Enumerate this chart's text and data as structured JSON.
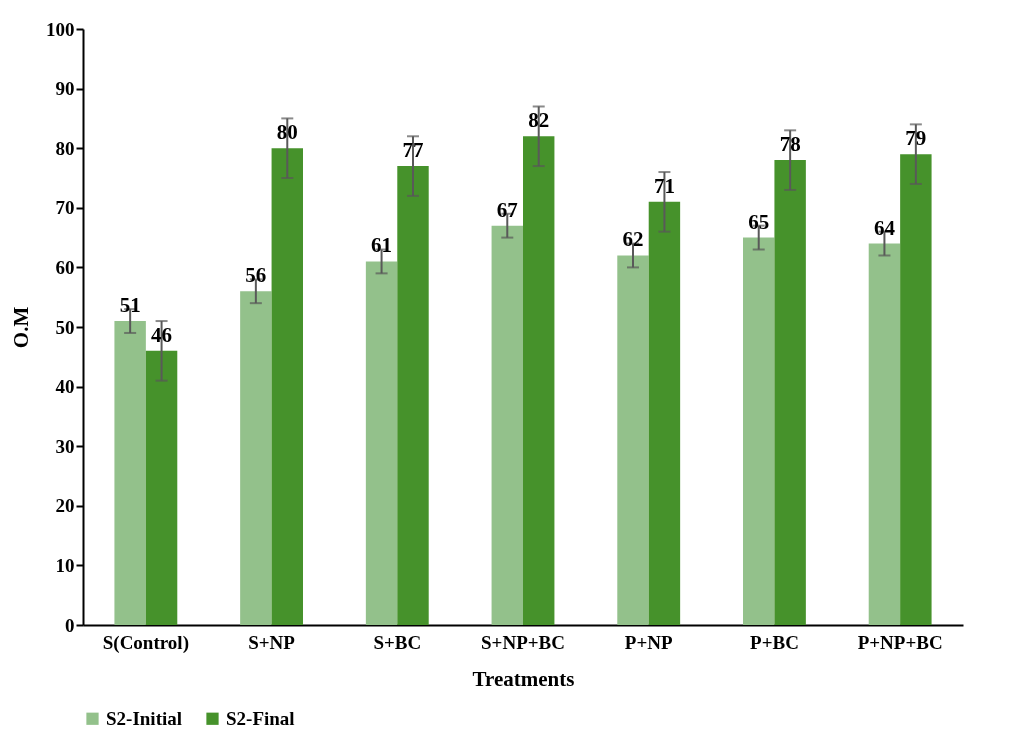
{
  "chart_data": {
    "type": "bar",
    "xlabel": "Treatments",
    "ylabel": "O.M",
    "categories": [
      "S(Control)",
      "S+NP",
      "S+BC",
      "S+NP+BC",
      "P+NP",
      "P+BC",
      "P+NP+BC"
    ],
    "series": [
      {
        "name": "S2-Initial",
        "color": "#93c18b",
        "values": [
          51,
          56,
          61,
          67,
          62,
          65,
          64
        ],
        "errors": [
          2,
          2,
          2,
          2,
          2,
          2,
          2
        ]
      },
      {
        "name": "S2-Final",
        "color": "#46922b",
        "values": [
          46,
          80,
          77,
          82,
          71,
          78,
          79
        ],
        "errors": [
          5,
          5,
          5,
          5,
          5,
          5,
          5
        ]
      }
    ],
    "ylim": [
      0,
      100
    ],
    "yticks": [
      0,
      10,
      20,
      30,
      40,
      50,
      60,
      70,
      80,
      90,
      100
    ],
    "grid": false,
    "legend": "bottom",
    "data_labels": true
  }
}
